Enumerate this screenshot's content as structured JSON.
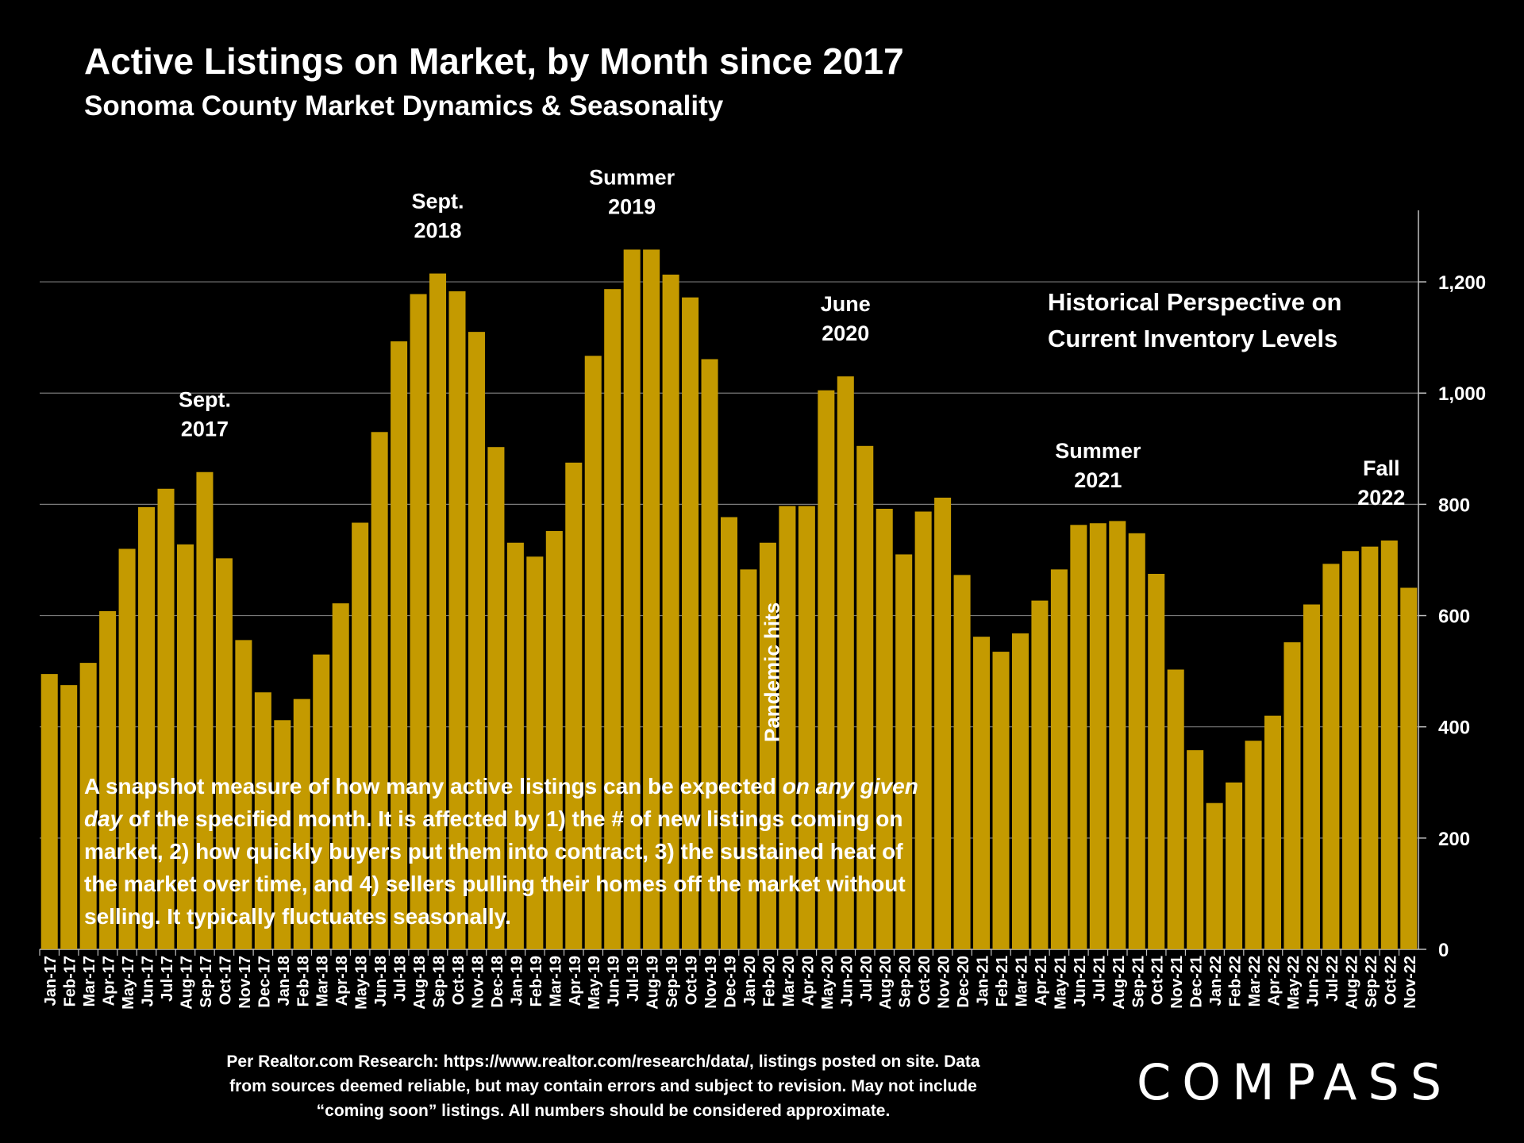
{
  "header": {
    "title": "Active Listings on Market, by Month since 2017",
    "subtitle": "Sonoma County Market Dynamics & Seasonality"
  },
  "perspective": [
    "Historical Perspective on",
    "Current Inventory Levels"
  ],
  "note": {
    "before": "A snapshot measure of how many active listings can be expected ",
    "emphasis": "on any given day",
    "after": " of the specified month. It is affected by 1) the # of new listings coming on market, 2) how quickly buyers put them into contract, 3) the sustained heat of the market over time, and 4) sellers pulling their homes off the market without selling. It typically fluctuates seasonally."
  },
  "source": "Per Realtor.com Research:  https://www.realtor.com/research/data/, listings posted on site. Data from sources deemed reliable, but may contain errors and subject to revision. May not include “coming soon” listings. All numbers should be considered approximate.",
  "brand": {
    "logo": "COMPASS"
  },
  "colors": {
    "bar": "#C49A00",
    "background": "#000000",
    "grid": "#7a7a7a",
    "text": "#ffffff"
  },
  "chart_data": {
    "type": "bar",
    "title": "Active Listings on Market, by Month since 2017",
    "xlabel": "",
    "ylabel": "",
    "ylim": [
      0,
      1300
    ],
    "yticks": [
      0,
      200,
      400,
      600,
      800,
      1000,
      1200
    ],
    "ytick_labels": [
      "0",
      "200",
      "400",
      "600",
      "800",
      "1,000",
      "1,200"
    ],
    "grid": true,
    "categories": [
      "Jan-17",
      "Feb-17",
      "Mar-17",
      "Apr-17",
      "May-17",
      "Jun-17",
      "Jul-17",
      "Aug-17",
      "Sep-17",
      "Oct-17",
      "Nov-17",
      "Dec-17",
      "Jan-18",
      "Feb-18",
      "Mar-18",
      "Apr-18",
      "May-18",
      "Jun-18",
      "Jul-18",
      "Aug-18",
      "Sep-18",
      "Oct-18",
      "Nov-18",
      "Dec-18",
      "Jan-19",
      "Feb-19",
      "Mar-19",
      "Apr-19",
      "May-19",
      "Jun-19",
      "Jul-19",
      "Aug-19",
      "Sep-19",
      "Oct-19",
      "Nov-19",
      "Dec-19",
      "Jan-20",
      "Feb-20",
      "Mar-20",
      "Apr-20",
      "May-20",
      "Jun-20",
      "Jul-20",
      "Aug-20",
      "Sep-20",
      "Oct-20",
      "Nov-20",
      "Dec-20",
      "Jan-21",
      "Feb-21",
      "Mar-21",
      "Apr-21",
      "May-21",
      "Jun-21",
      "Jul-21",
      "Aug-21",
      "Sep-21",
      "Oct-21",
      "Nov-21",
      "Dec-21",
      "Jan-22",
      "Feb-22",
      "Mar-22",
      "Apr-22",
      "May-22",
      "Jun-22",
      "Jul-22",
      "Aug-22",
      "Sep-22",
      "Oct-22",
      "Nov-22"
    ],
    "values": [
      495,
      475,
      515,
      608,
      720,
      795,
      828,
      728,
      858,
      703,
      556,
      462,
      412,
      450,
      530,
      622,
      767,
      930,
      1093,
      1178,
      1215,
      1183,
      1110,
      903,
      731,
      706,
      752,
      875,
      1067,
      1187,
      1258,
      1258,
      1213,
      1172,
      1061,
      777,
      683,
      731,
      797,
      797,
      1005,
      1030,
      905,
      792,
      710,
      787,
      812,
      673,
      562,
      535,
      568,
      627,
      683,
      763,
      766,
      770,
      748,
      675,
      503,
      358,
      263,
      300,
      375,
      420,
      552,
      620,
      693,
      716,
      724,
      735,
      650
    ],
    "annotations": [
      {
        "category": "Sep-17",
        "text": [
          "Sept.",
          "2017"
        ]
      },
      {
        "category": "Sep-18",
        "text": [
          "Sept.",
          "2018"
        ]
      },
      {
        "category": "Jul-19",
        "text": [
          "Summer",
          "2019"
        ]
      },
      {
        "category": "Jun-20",
        "text": [
          "June",
          "2020"
        ]
      },
      {
        "category": "Jul-21",
        "text": [
          "Summer",
          "2021"
        ]
      },
      {
        "category": "Oct-22",
        "text": [
          "Fall",
          "2022"
        ]
      }
    ],
    "event_label": {
      "category": "Mar-20",
      "text": "Pandemic hits"
    }
  }
}
